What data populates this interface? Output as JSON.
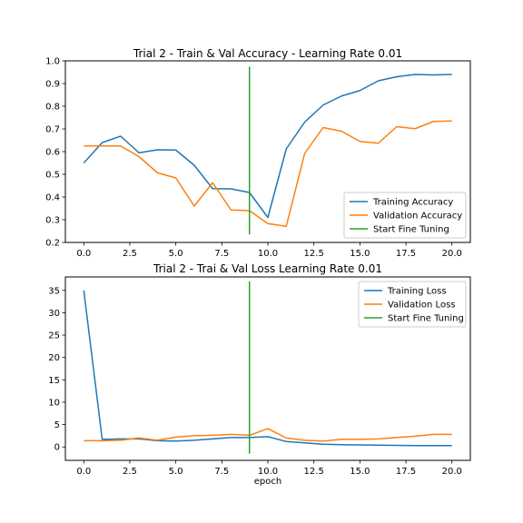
{
  "chart_data": [
    {
      "type": "line",
      "title": "Trial 2 - Train & Val Accuracy - Learning Rate 0.01",
      "xlabel": "",
      "ylabel": "",
      "xlim": [
        -1,
        21
      ],
      "ylim": [
        0.2,
        1.0
      ],
      "x_ticks": [
        "0.0",
        "2.5",
        "5.0",
        "7.5",
        "10.0",
        "12.5",
        "15.0",
        "17.5",
        "20.0"
      ],
      "y_ticks": [
        "0.2",
        "0.3",
        "0.4",
        "0.5",
        "0.6",
        "0.7",
        "0.8",
        "0.9",
        "1.0"
      ],
      "grid": false,
      "legend_position": "lower-right",
      "x": [
        0,
        1,
        2,
        3,
        4,
        5,
        6,
        7,
        8,
        9,
        10,
        11,
        12,
        13,
        14,
        15,
        16,
        17,
        18,
        19,
        20
      ],
      "series": [
        {
          "name": "Training Accuracy",
          "color": "#1f77b4",
          "values": [
            0.55,
            0.64,
            0.668,
            0.595,
            0.608,
            0.607,
            0.54,
            0.437,
            0.436,
            0.42,
            0.31,
            0.612,
            0.73,
            0.805,
            0.845,
            0.869,
            0.912,
            0.93,
            0.94,
            0.938,
            0.94
          ]
        },
        {
          "name": "Validation Accuracy",
          "color": "#ff7f0e",
          "values": [
            0.625,
            0.625,
            0.625,
            0.578,
            0.507,
            0.484,
            0.36,
            0.463,
            0.343,
            0.34,
            0.283,
            0.271,
            0.592,
            0.706,
            0.69,
            0.645,
            0.637,
            0.71,
            0.701,
            0.733,
            0.735
          ]
        }
      ],
      "vline": {
        "name": "Start Fine Tuning",
        "color": "#2ca02c",
        "x": 9,
        "y_range": [
          0.235,
          0.975
        ]
      }
    },
    {
      "type": "line",
      "title": "Trial 2 - Trai & Val Loss Learning Rate 0.01",
      "xlabel": "epoch",
      "ylabel": "",
      "xlim": [
        -1,
        21
      ],
      "ylim": [
        -3,
        38
      ],
      "x_ticks": [
        "0.0",
        "2.5",
        "5.0",
        "7.5",
        "10.0",
        "12.5",
        "15.0",
        "17.5",
        "20.0"
      ],
      "y_ticks": [
        "0",
        "5",
        "10",
        "15",
        "20",
        "25",
        "30",
        "35"
      ],
      "grid": false,
      "legend_position": "top-right",
      "x": [
        0,
        1,
        2,
        3,
        4,
        5,
        6,
        7,
        8,
        9,
        10,
        11,
        12,
        13,
        14,
        15,
        16,
        17,
        18,
        19,
        20
      ],
      "series": [
        {
          "name": "Training Loss",
          "color": "#1f77b4",
          "values": [
            35.0,
            1.7,
            1.8,
            1.8,
            1.4,
            1.3,
            1.5,
            1.8,
            2.1,
            2.1,
            2.3,
            1.2,
            0.9,
            0.6,
            0.5,
            0.45,
            0.4,
            0.35,
            0.3,
            0.3,
            0.3
          ]
        },
        {
          "name": "Validation Loss",
          "color": "#ff7f0e",
          "values": [
            1.4,
            1.4,
            1.5,
            2.0,
            1.5,
            2.2,
            2.5,
            2.6,
            2.8,
            2.6,
            4.1,
            2.0,
            1.5,
            1.3,
            1.7,
            1.7,
            1.8,
            2.1,
            2.4,
            2.8,
            2.8
          ]
        }
      ],
      "vline": {
        "name": "Start Fine Tuning",
        "color": "#2ca02c",
        "x": 9,
        "y_range": [
          -1.5,
          37
        ]
      }
    }
  ]
}
